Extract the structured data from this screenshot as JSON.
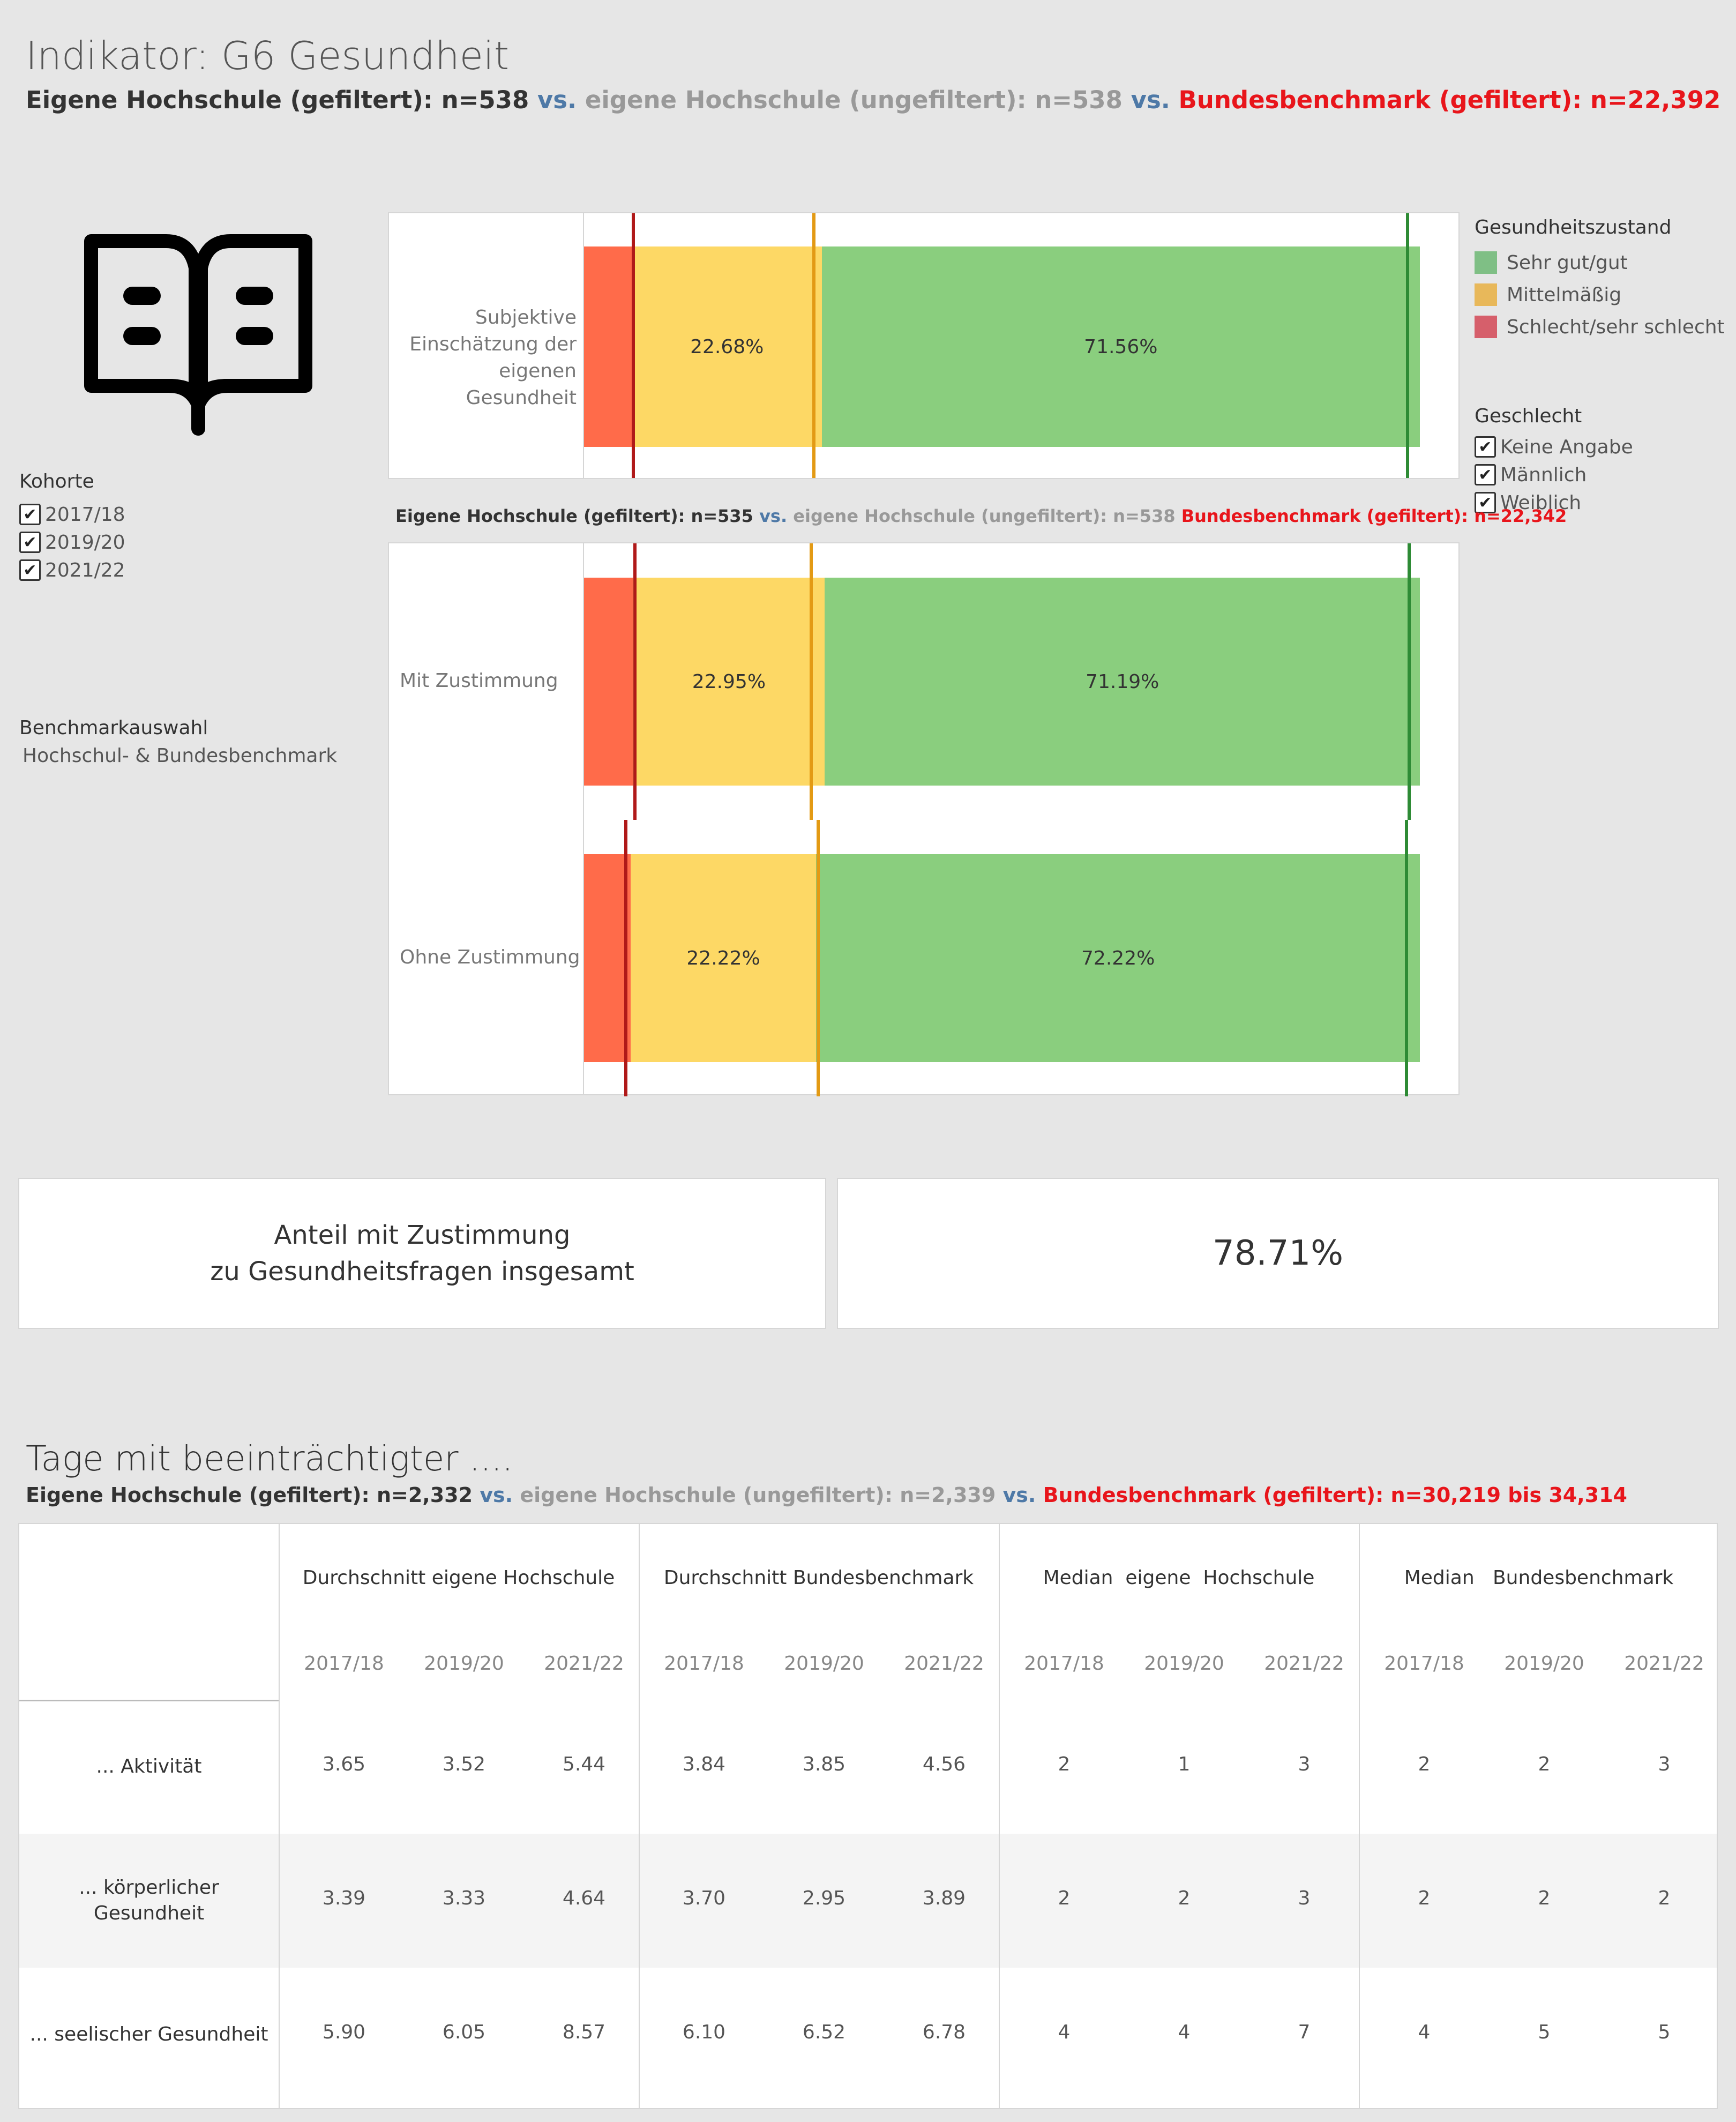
{
  "header": {
    "title": "Indikator: G6 Gesundheit",
    "sub_own": "Eigene Hochschule (gefiltert): n=538",
    "sub_vs1": " vs. ",
    "sub_unf": "eigene Hochschule (ungefiltert): n=538",
    "sub_vs2": " vs. ",
    "sub_bund": "Bundesbenchmark (gefiltert): n=22,392"
  },
  "icons": {
    "book": "open-book-icon",
    "check": "✔"
  },
  "filters": {
    "kohorte_title": "Kohorte",
    "kohorte": [
      "2017/18",
      "2019/20",
      "2021/22"
    ],
    "benchmark_title": "Benchmarkauswahl",
    "benchmark_value": "Hochschul- & Bundesbenchmark"
  },
  "legend": {
    "title": "Gesundheitszustand",
    "items": [
      {
        "label": "Sehr gut/gut",
        "color": "#7fbf85"
      },
      {
        "label": "Mittelmäßig",
        "color": "#e8b85a"
      },
      {
        "label": "Schlecht/sehr schlecht",
        "color": "#d65f6b"
      }
    ],
    "gender_title": "Geschlecht",
    "gender": [
      "Keine Angabe",
      "Männlich",
      "Weiblich"
    ]
  },
  "colors": {
    "bad": "#ff6b4a",
    "mid": "#fdd865",
    "good": "#8ace7e",
    "line_bad": "#b01919",
    "line_mid": "#e39a14",
    "line_good": "#2e8b35"
  },
  "chart_data": [
    {
      "type": "bar",
      "categories": [
        "Subjektive Einschätzung der eigenen Gesundheit"
      ],
      "series": [
        {
          "name": "Schlecht/sehr schlecht",
          "values": [
            5.76
          ]
        },
        {
          "name": "Mittelmäßig",
          "values": [
            22.68
          ]
        },
        {
          "name": "Sehr gut/gut",
          "values": [
            71.56
          ]
        }
      ],
      "labels": [
        "",
        "22.68%",
        "71.56%"
      ],
      "benchmark_lines": [
        5.9,
        27.5,
        98.5
      ]
    },
    {
      "type": "bar",
      "subtitle_own": "Eigene Hochschule (gefiltert): n=535",
      "subtitle_vs1": " vs. ",
      "subtitle_unf": "eigene Hochschule (ungefiltert): n=538",
      "subtitle_bund": " Bundesbenchmark (gefiltert): n=22,342",
      "categories": [
        "Mit Zustimmung",
        "Ohne Zustimmung"
      ],
      "series": [
        {
          "name": "Schlecht/sehr schlecht",
          "values": [
            5.86,
            5.56
          ]
        },
        {
          "name": "Mittelmäßig",
          "values": [
            22.95,
            22.22
          ]
        },
        {
          "name": "Sehr gut/gut",
          "values": [
            71.19,
            72.22
          ]
        }
      ],
      "labels_mid": [
        "22.95%",
        "22.22%"
      ],
      "labels_good": [
        "71.19%",
        "72.22%"
      ],
      "benchmark_lines": [
        [
          6.1,
          27.2,
          98.7
        ],
        [
          5.0,
          28.0,
          98.4
        ]
      ]
    }
  ],
  "kpi": {
    "label_line1": "Anteil mit Zustimmung",
    "label_line2": "zu Gesundheitsfragen insgesamt",
    "value": "78.71%"
  },
  "table": {
    "title": "Tage mit beeinträchtigter ....",
    "sub_own": "Eigene Hochschule (gefiltert): n=2,332",
    "sub_vs1": " vs. ",
    "sub_unf": "eigene Hochschule (ungefiltert): n=2,339",
    "sub_vs2": " vs. ",
    "sub_bund": "Bundesbenchmark (gefiltert): n=30,219 bis 34,314",
    "groups": [
      "Durchschnitt eigene Hochschule",
      "Durchschnitt Bundesbenchmark",
      "Median  eigene  Hochschule",
      "Median   Bundesbenchmark"
    ],
    "years": [
      "2017/18",
      "2019/20",
      "2021/22"
    ],
    "rows": [
      {
        "label": "... Aktivität",
        "values": [
          "3.65",
          "3.52",
          "5.44",
          "3.84",
          "3.85",
          "4.56",
          "2",
          "1",
          "3",
          "2",
          "2",
          "3"
        ]
      },
      {
        "label": "... körperlicher\nGesundheit",
        "values": [
          "3.39",
          "3.33",
          "4.64",
          "3.70",
          "2.95",
          "3.89",
          "2",
          "2",
          "3",
          "2",
          "2",
          "2"
        ]
      },
      {
        "label": "... seelischer Gesundheit",
        "values": [
          "5.90",
          "6.05",
          "8.57",
          "6.10",
          "6.52",
          "6.78",
          "4",
          "4",
          "7",
          "4",
          "5",
          "5"
        ]
      }
    ]
  }
}
